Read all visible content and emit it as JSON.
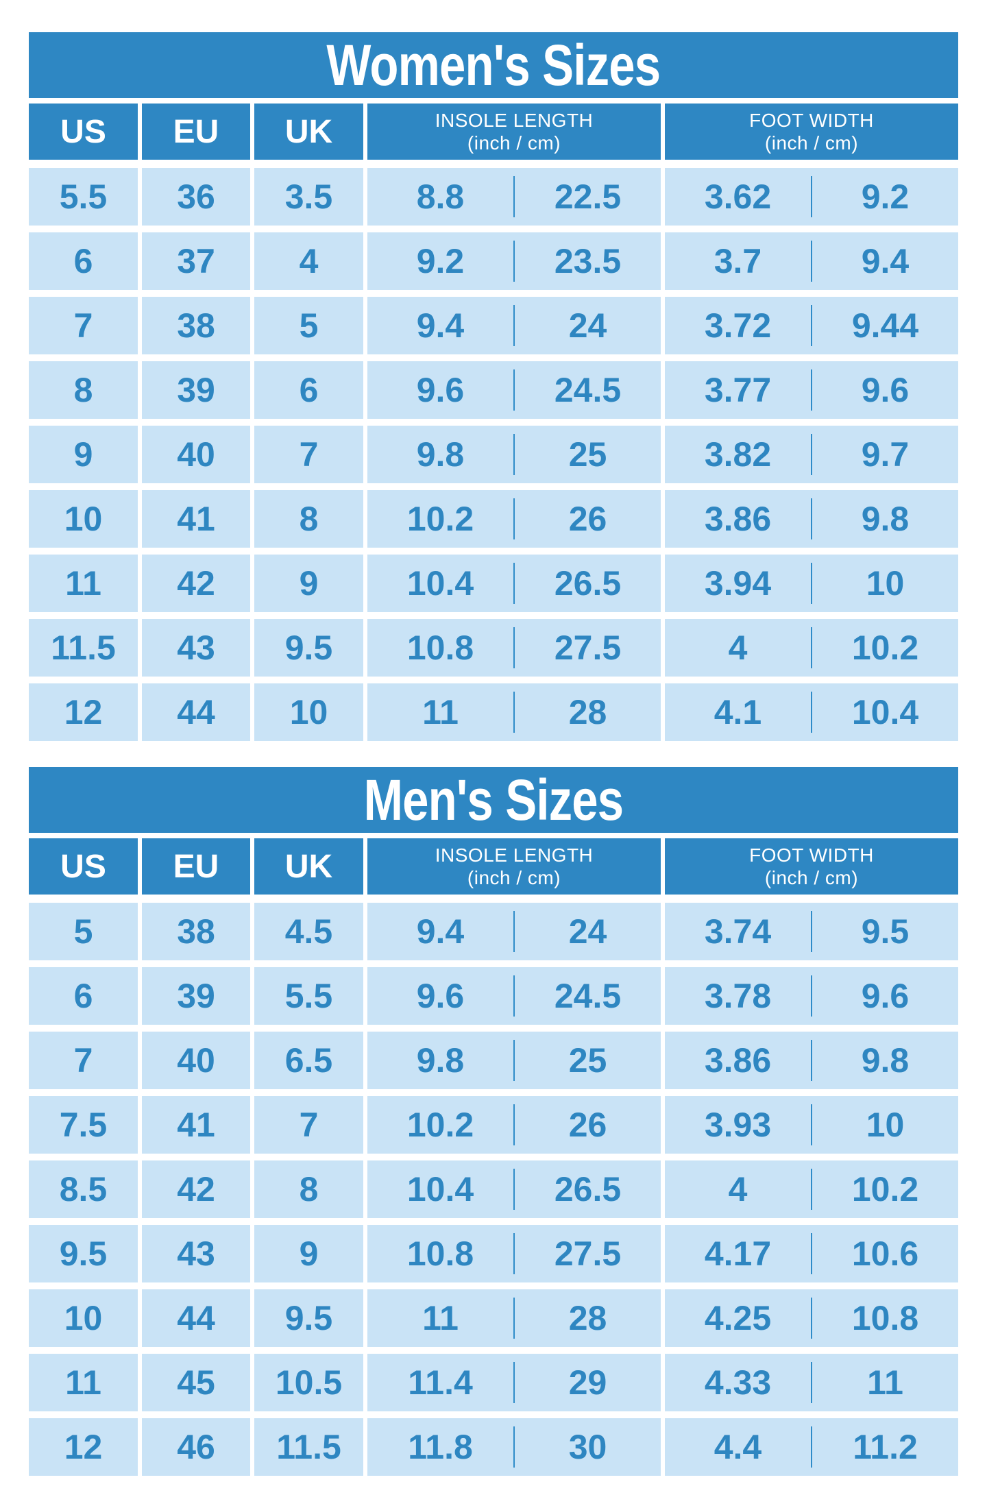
{
  "colors": {
    "primary_blue": "#2E87C3",
    "cell_light_blue": "#C9E3F6",
    "value_text_blue": "#2E86C1",
    "divider_blue": "#2F8CC9",
    "background": "#FFFFFF",
    "header_text": "#FFFFFF"
  },
  "chart_data": [
    {
      "type": "table",
      "title": "Women's Sizes",
      "columns": {
        "us": "US",
        "eu": "EU",
        "uk": "UK",
        "insole_title": "INSOLE LENGTH",
        "insole_sub": "(inch / cm)",
        "foot_title": "FOOT WIDTH",
        "foot_sub": "(inch / cm)"
      },
      "column_keys": [
        "US",
        "EU",
        "UK",
        "Insole length (inch)",
        "Insole length (cm)",
        "Foot width (inch)",
        "Foot width (cm)"
      ],
      "rows": [
        [
          "5.5",
          "36",
          "3.5",
          "8.8",
          "22.5",
          "3.62",
          "9.2"
        ],
        [
          "6",
          "37",
          "4",
          "9.2",
          "23.5",
          "3.7",
          "9.4"
        ],
        [
          "7",
          "38",
          "5",
          "9.4",
          "24",
          "3.72",
          "9.44"
        ],
        [
          "8",
          "39",
          "6",
          "9.6",
          "24.5",
          "3.77",
          "9.6"
        ],
        [
          "9",
          "40",
          "7",
          "9.8",
          "25",
          "3.82",
          "9.7"
        ],
        [
          "10",
          "41",
          "8",
          "10.2",
          "26",
          "3.86",
          "9.8"
        ],
        [
          "11",
          "42",
          "9",
          "10.4",
          "26.5",
          "3.94",
          "10"
        ],
        [
          "11.5",
          "43",
          "9.5",
          "10.8",
          "27.5",
          "4",
          "10.2"
        ],
        [
          "12",
          "44",
          "10",
          "11",
          "28",
          "4.1",
          "10.4"
        ]
      ]
    },
    {
      "type": "table",
      "title": "Men's Sizes",
      "columns": {
        "us": "US",
        "eu": "EU",
        "uk": "UK",
        "insole_title": "INSOLE LENGTH",
        "insole_sub": "(inch / cm)",
        "foot_title": "FOOT WIDTH",
        "foot_sub": "(inch / cm)"
      },
      "column_keys": [
        "US",
        "EU",
        "UK",
        "Insole length (inch)",
        "Insole length (cm)",
        "Foot width (inch)",
        "Foot width (cm)"
      ],
      "rows": [
        [
          "5",
          "38",
          "4.5",
          "9.4",
          "24",
          "3.74",
          "9.5"
        ],
        [
          "6",
          "39",
          "5.5",
          "9.6",
          "24.5",
          "3.78",
          "9.6"
        ],
        [
          "7",
          "40",
          "6.5",
          "9.8",
          "25",
          "3.86",
          "9.8"
        ],
        [
          "7.5",
          "41",
          "7",
          "10.2",
          "26",
          "3.93",
          "10"
        ],
        [
          "8.5",
          "42",
          "8",
          "10.4",
          "26.5",
          "4",
          "10.2"
        ],
        [
          "9.5",
          "43",
          "9",
          "10.8",
          "27.5",
          "4.17",
          "10.6"
        ],
        [
          "10",
          "44",
          "9.5",
          "11",
          "28",
          "4.25",
          "10.8"
        ],
        [
          "11",
          "45",
          "10.5",
          "11.4",
          "29",
          "4.33",
          "11"
        ],
        [
          "12",
          "46",
          "11.5",
          "11.8",
          "30",
          "4.4",
          "11.2"
        ]
      ]
    }
  ]
}
